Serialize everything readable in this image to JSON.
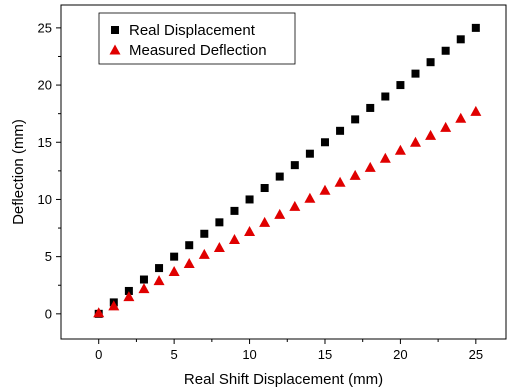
{
  "chart_data": {
    "type": "scatter",
    "title": "",
    "xlabel": "Real Shift Displacement (mm)",
    "ylabel": "Deflection (mm)",
    "xlim": [
      -2.5,
      27
    ],
    "ylim": [
      -2.2,
      27
    ],
    "xticks": [
      0,
      5,
      10,
      15,
      20,
      25
    ],
    "yticks": [
      0,
      5,
      10,
      15,
      20,
      25
    ],
    "grid": false,
    "legend_position": "top-left",
    "series": [
      {
        "name": "Real Displacement",
        "marker": "square",
        "color": "#000000",
        "x": [
          0,
          1,
          2,
          3,
          4,
          5,
          6,
          7,
          8,
          9,
          10,
          11,
          12,
          13,
          14,
          15,
          16,
          17,
          18,
          19,
          20,
          21,
          22,
          23,
          24,
          25
        ],
        "y": [
          0,
          1,
          2,
          3,
          4,
          5,
          6,
          7,
          8,
          9,
          10,
          11,
          12,
          13,
          14,
          15,
          16,
          17,
          18,
          19,
          20,
          21,
          22,
          23,
          24,
          25
        ]
      },
      {
        "name": "Measured Deflection",
        "marker": "triangle",
        "color": "#e00000",
        "x": [
          0,
          1,
          2,
          3,
          4,
          5,
          6,
          7,
          8,
          9,
          10,
          11,
          12,
          13,
          14,
          15,
          16,
          17,
          18,
          19,
          20,
          21,
          22,
          23,
          24,
          25
        ],
        "y": [
          0.1,
          0.7,
          1.5,
          2.2,
          2.9,
          3.7,
          4.4,
          5.2,
          5.8,
          6.5,
          7.2,
          8.0,
          8.7,
          9.4,
          10.1,
          10.8,
          11.5,
          12.1,
          12.8,
          13.6,
          14.3,
          15.0,
          15.6,
          16.3,
          17.1,
          17.7
        ]
      }
    ]
  }
}
